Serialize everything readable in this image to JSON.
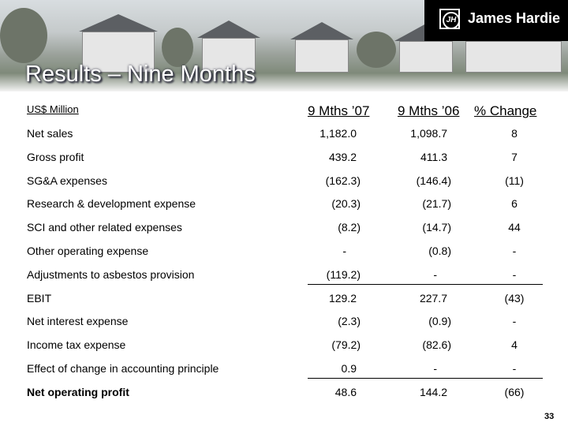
{
  "header": {
    "logo_text": "James Hardie",
    "title": "Results – Nine Months"
  },
  "table": {
    "units_label": "US$ Million",
    "columns": [
      "9 Mths ’07",
      "9 Mths ’06",
      "% Change"
    ],
    "rows": [
      {
        "label": "Net sales",
        "values": [
          "1,182.0",
          "1,098.7",
          "8"
        ]
      },
      {
        "label": "Gross profit",
        "values": [
          "439.2",
          "411.3",
          "7"
        ]
      },
      {
        "label": "SG&A expenses",
        "values": [
          "(162.3)",
          "(146.4)",
          "(11)"
        ]
      },
      {
        "label": "Research & development expense",
        "values": [
          "(20.3)",
          "(21.7)",
          "6"
        ]
      },
      {
        "label": "SCI and other related expenses",
        "values": [
          "(8.2)",
          "(14.7)",
          "44"
        ]
      },
      {
        "label": "Other operating expense",
        "values": [
          "-",
          "(0.8)",
          "-"
        ]
      },
      {
        "label": "Adjustments to asbestos provision",
        "values": [
          "(119.2)",
          "-",
          "-"
        ]
      },
      {
        "label": "EBIT",
        "values": [
          "129.2",
          "227.7",
          "(43)"
        ]
      },
      {
        "label": "Net interest expense",
        "values": [
          "(2.3)",
          "(0.9)",
          "-"
        ]
      },
      {
        "label": "Income tax expense",
        "values": [
          "(79.2)",
          "(82.6)",
          "4"
        ]
      },
      {
        "label": "Effect of change in accounting principle",
        "values": [
          "0.9",
          "-",
          "-"
        ]
      },
      {
        "label": "Net operating profit",
        "values": [
          "48.6",
          "144.2",
          "(66)"
        ]
      }
    ]
  },
  "page_number": "33"
}
